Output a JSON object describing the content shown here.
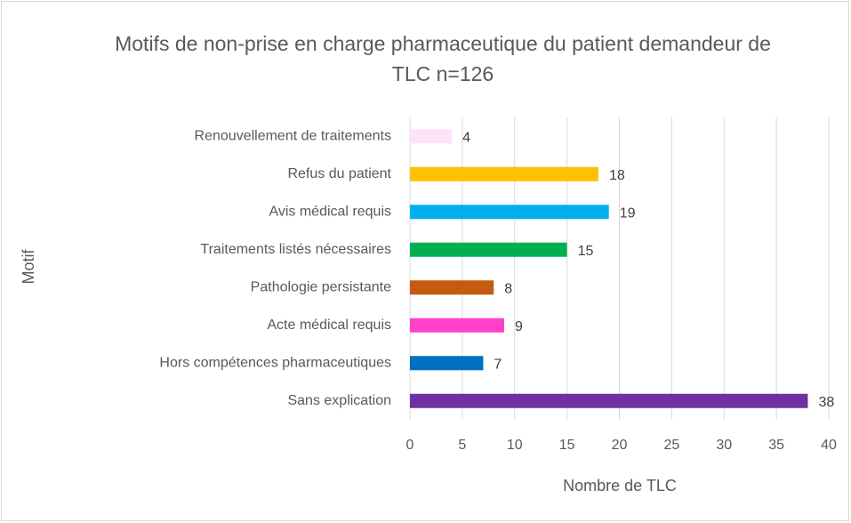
{
  "chart_data": {
    "type": "bar",
    "orientation": "horizontal",
    "title": "Motifs de non-prise en charge pharmaceutique du patient demandeur de TLC n=126",
    "x_label": "Nombre de TLC",
    "y_label": "Motif",
    "categories": [
      "Renouvellement de traitements",
      "Refus du patient",
      "Avis médical requis",
      "Traitements listés nécessaires",
      "Pathologie persistante",
      "Acte médical requis",
      "Hors compétences pharmaceutiques",
      "Sans explication"
    ],
    "values": [
      4,
      18,
      19,
      15,
      8,
      9,
      7,
      38
    ],
    "colors": [
      "#fde3f8",
      "#ffc000",
      "#00b0f0",
      "#00b050",
      "#c55a11",
      "#ff40c8",
      "#0070c0",
      "#7030a0"
    ],
    "xlim": [
      0,
      40
    ],
    "xticks": [
      0,
      5,
      10,
      15,
      20,
      25,
      30,
      35,
      40
    ],
    "grid": true
  }
}
